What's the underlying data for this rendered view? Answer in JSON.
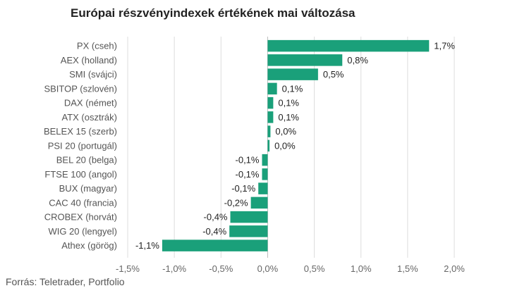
{
  "title": "Európai részvényindexek értékének mai változása",
  "source": "Forrás: Teletrader, Portfolio",
  "colors": {
    "bar": "#1aa07a"
  },
  "chart_data": {
    "type": "bar",
    "orientation": "horizontal",
    "title": "Európai részvényindexek értékének mai változása",
    "categories": [
      "PX (cseh)",
      "AEX (holland)",
      "SMI (svájci)",
      "SBITOP (szlovén)",
      "DAX (német)",
      "ATX (osztrák)",
      "BELEX 15 (szerb)",
      "PSI 20 (portugál)",
      "BEL 20 (belga)",
      "FTSE 100 (angol)",
      "BUX (magyar)",
      "CAC 40 (francia)",
      "CROBEX (horvát)",
      "WIG 20 (lengyel)",
      "Athex (görög)"
    ],
    "values": [
      1.73,
      0.8,
      0.54,
      0.1,
      0.06,
      0.06,
      0.03,
      0.02,
      -0.06,
      -0.06,
      -0.1,
      -0.18,
      -0.4,
      -0.41,
      -1.13
    ],
    "value_labels": [
      "1,7%",
      "0,8%",
      "0,5%",
      "0,1%",
      "0,1%",
      "0,1%",
      "0,0%",
      "0,0%",
      "-0,1%",
      "-0,1%",
      "-0,1%",
      "-0,2%",
      "-0,4%",
      "-0,4%",
      "-1,1%"
    ],
    "xlim": [
      -1.5,
      2.0
    ],
    "xticks": [
      -1.5,
      -1.0,
      -0.5,
      0.0,
      0.5,
      1.0,
      1.5,
      2.0
    ],
    "xtick_labels": [
      "-1,5%",
      "-1,0%",
      "-0,5%",
      "0,0%",
      "0,5%",
      "1,0%",
      "1,5%",
      "2,0%"
    ],
    "xlabel": "",
    "ylabel": "",
    "grid": true,
    "legend": false
  }
}
